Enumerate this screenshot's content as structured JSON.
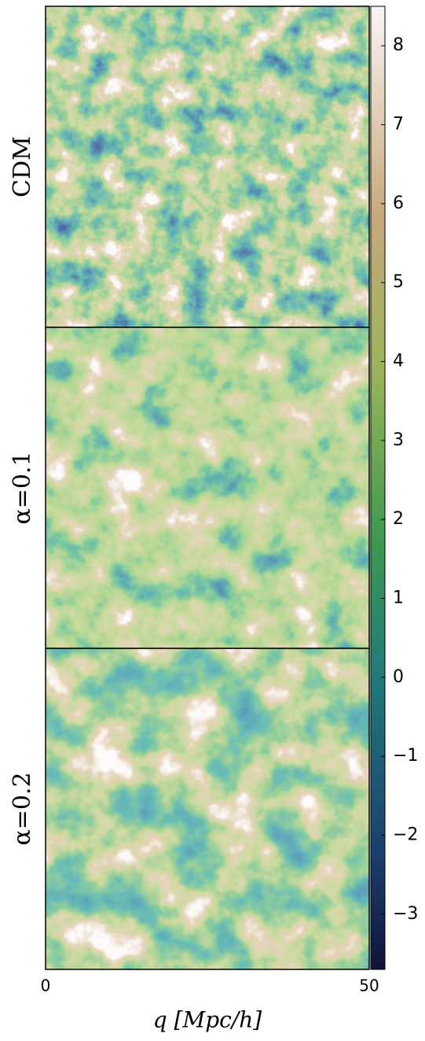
{
  "chart_data": {
    "type": "image",
    "panels": [
      "CDM",
      "α=0.1",
      "α=0.2"
    ],
    "xlabel": "q [Mpc/h]",
    "xlim": [
      0,
      50
    ],
    "xticks": [
      0,
      50
    ],
    "clim": [
      -3.7,
      8.5
    ],
    "cticks": [
      {
        "value": -3,
        "label": "−3"
      },
      {
        "value": -2,
        "label": "−2"
      },
      {
        "value": -1,
        "label": "−1"
      },
      0,
      1,
      2,
      3,
      4,
      5,
      6,
      7,
      8
    ]
  }
}
